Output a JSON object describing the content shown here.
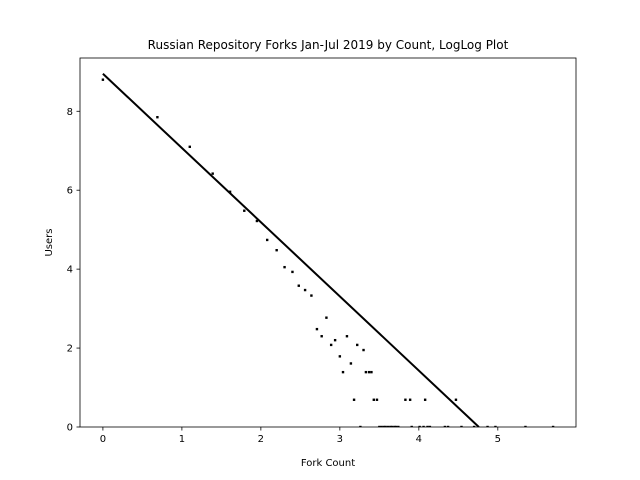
{
  "chart_data": {
    "type": "scatter",
    "title": "Russian Repository Forks Jan-Jul 2019 by Count, LogLog Plot",
    "xlabel": "Fork Count",
    "ylabel": "Users",
    "xlim": [
      -0.29,
      5.99
    ],
    "ylim": [
      0,
      9.35
    ],
    "xticks": [
      0,
      1,
      2,
      3,
      4,
      5
    ],
    "yticks": [
      0,
      2,
      4,
      6,
      8
    ],
    "grid": false,
    "legend": "none",
    "colors": {
      "points": "#000000",
      "fit_line": "#000000"
    },
    "points": [
      [
        0.0,
        8.8
      ],
      [
        0.69,
        7.85
      ],
      [
        1.1,
        7.1
      ],
      [
        1.39,
        6.42
      ],
      [
        1.61,
        5.96
      ],
      [
        1.79,
        5.48
      ],
      [
        1.95,
        5.22
      ],
      [
        2.08,
        4.74
      ],
      [
        2.2,
        4.48
      ],
      [
        2.3,
        4.05
      ],
      [
        2.4,
        3.93
      ],
      [
        2.48,
        3.58
      ],
      [
        2.56,
        3.47
      ],
      [
        2.64,
        3.33
      ],
      [
        2.71,
        2.48
      ],
      [
        2.77,
        2.3
      ],
      [
        2.83,
        2.77
      ],
      [
        2.89,
        2.08
      ],
      [
        2.94,
        2.2
      ],
      [
        3.0,
        1.79
      ],
      [
        3.04,
        1.39
      ],
      [
        3.09,
        2.3
      ],
      [
        3.14,
        1.61
      ],
      [
        3.18,
        0.69
      ],
      [
        3.22,
        2.08
      ],
      [
        3.26,
        0.0
      ],
      [
        3.3,
        1.95
      ],
      [
        3.33,
        1.39
      ],
      [
        3.37,
        1.39
      ],
      [
        3.4,
        1.39
      ],
      [
        3.43,
        0.69
      ],
      [
        3.47,
        0.69
      ],
      [
        3.5,
        0.0
      ],
      [
        3.53,
        0.0
      ],
      [
        3.56,
        0.0
      ],
      [
        3.58,
        0.0
      ],
      [
        3.61,
        0.0
      ],
      [
        3.64,
        0.0
      ],
      [
        3.66,
        0.0
      ],
      [
        3.69,
        0.0
      ],
      [
        3.71,
        0.0
      ],
      [
        3.74,
        0.0
      ],
      [
        3.83,
        0.69
      ],
      [
        3.89,
        0.69
      ],
      [
        3.91,
        0.0
      ],
      [
        4.01,
        0.0
      ],
      [
        4.06,
        0.0
      ],
      [
        4.08,
        0.69
      ],
      [
        4.11,
        0.0
      ],
      [
        4.14,
        0.0
      ],
      [
        4.33,
        0.0
      ],
      [
        4.37,
        0.0
      ],
      [
        4.47,
        0.69
      ],
      [
        4.54,
        0.0
      ],
      [
        4.7,
        0.0
      ],
      [
        4.87,
        0.0
      ],
      [
        4.97,
        0.0
      ],
      [
        5.35,
        0.0
      ],
      [
        5.7,
        0.0
      ]
    ],
    "fit_line": [
      [
        0.0,
        8.95
      ],
      [
        4.76,
        0.0
      ]
    ]
  }
}
